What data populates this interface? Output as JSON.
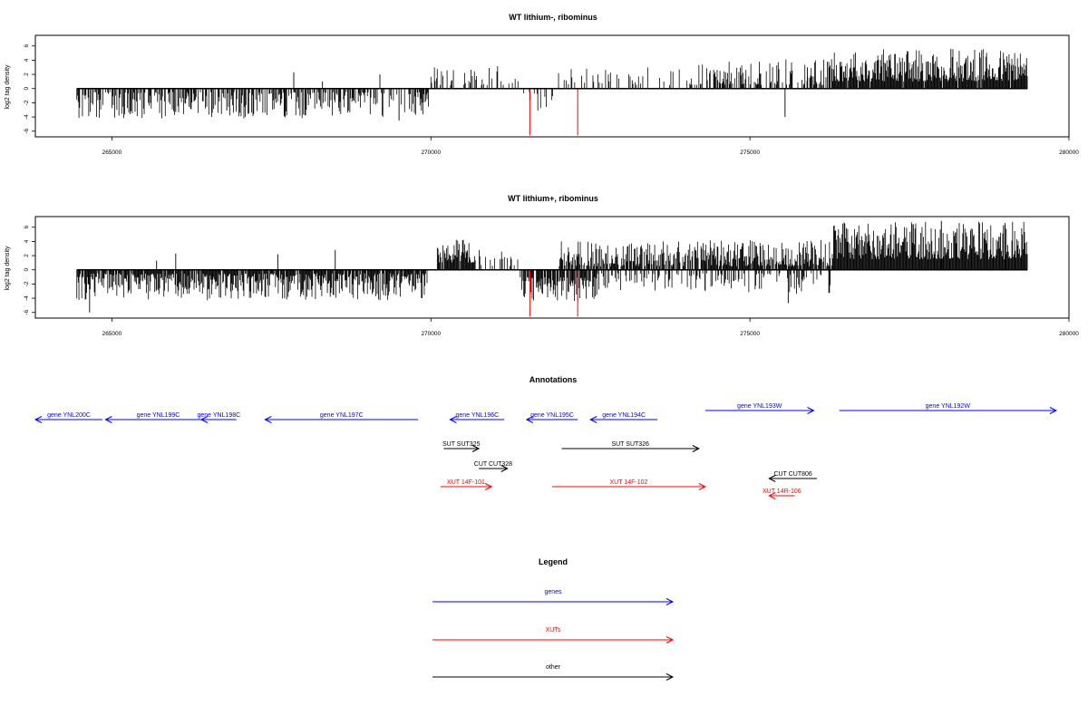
{
  "colors": {
    "genes": "#0000ff",
    "xuts": "#ff0000",
    "other": "#000000",
    "highlight": "#ff0000"
  },
  "chart_data": [
    {
      "type": "bar",
      "title": "WT lithium-, ribominus",
      "ylabel": "log2 tag density",
      "xlim": [
        263800,
        280000
      ],
      "ylim": [
        -6.8,
        7.5
      ],
      "xticks": [
        265000,
        270000,
        275000,
        280000
      ],
      "xtick_labels": [
        "265000",
        "270000",
        "275000",
        "280000"
      ],
      "yticks": [
        -6,
        -4,
        -2,
        0,
        2,
        4,
        6
      ],
      "ytick_labels": [
        "-6",
        "-4",
        "-2",
        "0",
        "2",
        "4",
        "6"
      ],
      "baseline": {
        "from": 264450,
        "to": 279350
      },
      "segments": [
        {
          "from": 264450,
          "to": 270000,
          "sign": -1,
          "min": 0.5,
          "max": 4.2,
          "density": 0.55
        },
        {
          "from": 270000,
          "to": 271400,
          "sign": 1,
          "min": 0.5,
          "max": 3.2,
          "density": 0.3
        },
        {
          "from": 271400,
          "to": 272000,
          "sign": -1,
          "min": 0.5,
          "max": 3.5,
          "density": 0.2
        },
        {
          "from": 272000,
          "to": 274200,
          "sign": 1,
          "min": 0.5,
          "max": 3.0,
          "density": 0.2
        },
        {
          "from": 274200,
          "to": 276300,
          "sign": 1,
          "min": 0.5,
          "max": 4.2,
          "density": 0.5
        },
        {
          "from": 276300,
          "to": 279350,
          "sign": 1,
          "min": 1.0,
          "max": 5.6,
          "density": 0.95
        }
      ],
      "peaks": [
        {
          "x": 267850,
          "y": 2.3
        },
        {
          "x": 268300,
          "y": 1.0
        },
        {
          "x": 269200,
          "y": 2.0
        },
        {
          "x": 265300,
          "y": -3.2
        },
        {
          "x": 266000,
          "y": -3.3
        },
        {
          "x": 266800,
          "y": -3.1
        },
        {
          "x": 267700,
          "y": -3.9
        },
        {
          "x": 269500,
          "y": -4.5
        },
        {
          "x": 275550,
          "y": -4.0
        },
        {
          "x": 275900,
          "y": 3.0
        },
        {
          "x": 278150,
          "y": 5.6
        }
      ],
      "highlights": [
        {
          "x": 271550,
          "y": -6.6
        },
        {
          "x": 272300,
          "y": -6.6
        }
      ]
    },
    {
      "type": "bar",
      "title": "WT lithium+, ribominus",
      "ylabel": "log2 tag density",
      "xlim": [
        263800,
        280000
      ],
      "ylim": [
        -6.8,
        7.5
      ],
      "xticks": [
        265000,
        270000,
        275000,
        280000
      ],
      "xtick_labels": [
        "265000",
        "270000",
        "275000",
        "280000"
      ],
      "yticks": [
        -6,
        -4,
        -2,
        0,
        2,
        4,
        6
      ],
      "ytick_labels": [
        "-6",
        "-4",
        "-2",
        "0",
        "2",
        "4",
        "6"
      ],
      "baseline": {
        "from": 264450,
        "to": 279350
      },
      "segments": [
        {
          "from": 264450,
          "to": 269950,
          "sign": -1,
          "min": 0.5,
          "max": 4.3,
          "density": 0.9
        },
        {
          "from": 270100,
          "to": 270700,
          "sign": 1,
          "min": 1.0,
          "max": 4.4,
          "density": 0.9
        },
        {
          "from": 270700,
          "to": 271400,
          "sign": 1,
          "min": 0.5,
          "max": 3.0,
          "density": 0.3
        },
        {
          "from": 271400,
          "to": 272600,
          "sign": -1,
          "min": 1.0,
          "max": 4.5,
          "density": 0.8
        },
        {
          "from": 272000,
          "to": 274300,
          "sign": 1,
          "min": 0.5,
          "max": 4.0,
          "density": 0.7
        },
        {
          "from": 272600,
          "to": 274300,
          "sign": -1,
          "min": 0.5,
          "max": 3.0,
          "density": 0.35
        },
        {
          "from": 274300,
          "to": 276300,
          "sign": 1,
          "min": 0.5,
          "max": 4.3,
          "density": 0.9
        },
        {
          "from": 274300,
          "to": 276300,
          "sign": -1,
          "min": 0.5,
          "max": 3.5,
          "density": 0.35
        },
        {
          "from": 276300,
          "to": 279350,
          "sign": 1,
          "min": 1.5,
          "max": 6.8,
          "density": 1.0
        }
      ],
      "peaks": [
        {
          "x": 264650,
          "y": -6.0
        },
        {
          "x": 266000,
          "y": 2.3
        },
        {
          "x": 265700,
          "y": 1.3
        },
        {
          "x": 267600,
          "y": 2.2
        },
        {
          "x": 268500,
          "y": 2.8
        },
        {
          "x": 275600,
          "y": -4.7
        },
        {
          "x": 278000,
          "y": 6.9
        },
        {
          "x": 279000,
          "y": 6.6
        }
      ],
      "highlights": [
        {
          "x": 271550,
          "y": -6.6
        },
        {
          "x": 272300,
          "y": -6.6
        }
      ]
    }
  ],
  "annotations": {
    "title": "Annotations",
    "items": [
      {
        "label": "gene YNL200C",
        "type": "genes",
        "dir": "left",
        "x1": 263800,
        "x2": 264850,
        "row": 0
      },
      {
        "label": "gene YNL199C",
        "type": "genes",
        "dir": "left",
        "x1": 264900,
        "x2": 266550,
        "row": 0
      },
      {
        "label": "gene YNL198C",
        "type": "genes",
        "dir": "left",
        "x1": 266400,
        "x2": 266950,
        "row": 0
      },
      {
        "label": "gene YNL197C",
        "type": "genes",
        "dir": "left",
        "x1": 267400,
        "x2": 269800,
        "row": 0
      },
      {
        "label": "gene YNL196C",
        "type": "genes",
        "dir": "left",
        "x1": 270300,
        "x2": 271150,
        "row": 0
      },
      {
        "label": "gene YNL195C",
        "type": "genes",
        "dir": "left",
        "x1": 271500,
        "x2": 272300,
        "row": 0
      },
      {
        "label": "gene YNL194C",
        "type": "genes",
        "dir": "left",
        "x1": 272500,
        "x2": 273550,
        "row": 0
      },
      {
        "label": "gene YNL193W",
        "type": "genes",
        "dir": "right",
        "x1": 274300,
        "x2": 276000,
        "row": -1
      },
      {
        "label": "gene YNL192W",
        "type": "genes",
        "dir": "right",
        "x1": 276400,
        "x2": 279800,
        "row": -1
      },
      {
        "label": "SUT SUT325",
        "type": "other",
        "dir": "right",
        "x1": 270200,
        "x2": 270750,
        "row": 1
      },
      {
        "label": "SUT SUT326",
        "type": "other",
        "dir": "right",
        "x1": 272050,
        "x2": 274200,
        "row": 1
      },
      {
        "label": "CUT CUT328",
        "type": "other",
        "dir": "right",
        "x1": 270750,
        "x2": 271200,
        "row": 2
      },
      {
        "label": "CUT CUT806",
        "type": "other",
        "dir": "left",
        "x1": 275300,
        "x2": 276050,
        "row": 3
      },
      {
        "label": "XUT 14F-101",
        "type": "xuts",
        "dir": "right",
        "x1": 270150,
        "x2": 270950,
        "row": 4
      },
      {
        "label": "XUT 14F-102",
        "type": "xuts",
        "dir": "right",
        "x1": 271900,
        "x2": 274300,
        "row": 4
      },
      {
        "label": "XUT 14R-106",
        "type": "xuts",
        "dir": "left",
        "x1": 275300,
        "x2": 275700,
        "row": 5
      }
    ]
  },
  "legend": {
    "title": "Legend",
    "items": [
      {
        "label": "genes",
        "type": "genes"
      },
      {
        "label": "XUTs",
        "type": "xuts"
      },
      {
        "label": "other",
        "type": "other"
      }
    ]
  }
}
